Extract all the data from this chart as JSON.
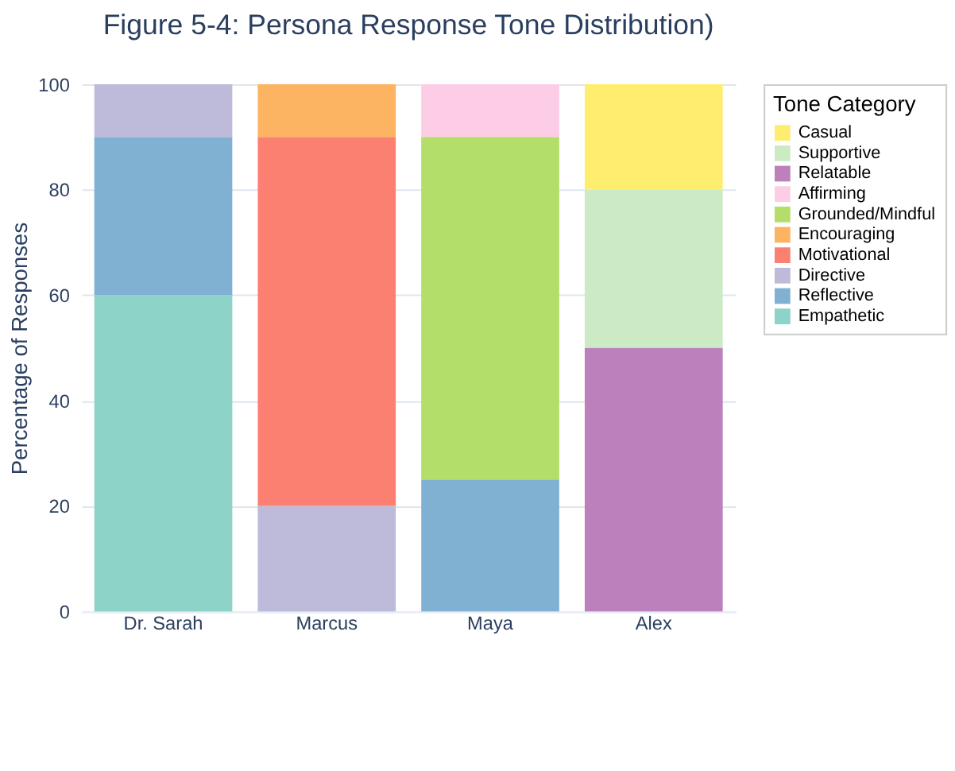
{
  "chart_data": {
    "type": "bar",
    "title": "Figure 5-4: Persona Response Tone Distribution)",
    "ylabel": "Percentage of Responses",
    "legend_title": "Tone Category",
    "categories": [
      "Dr. Sarah",
      "Marcus",
      "Maya",
      "Alex"
    ],
    "stacked": true,
    "ylim": [
      0,
      100
    ],
    "yticks": [
      0,
      20,
      40,
      60,
      80,
      100
    ],
    "grid": "y",
    "legend": "right",
    "series": [
      {
        "name": "Empathetic",
        "color": "#8dd3c7",
        "values": [
          60,
          null,
          null,
          null
        ]
      },
      {
        "name": "Reflective",
        "color": "#80b1d3",
        "values": [
          30,
          null,
          25,
          null
        ]
      },
      {
        "name": "Directive",
        "color": "#bebada",
        "values": [
          10,
          20,
          null,
          null
        ]
      },
      {
        "name": "Motivational",
        "color": "#fb8072",
        "values": [
          null,
          70,
          null,
          null
        ]
      },
      {
        "name": "Encouraging",
        "color": "#fdb462",
        "values": [
          null,
          10,
          null,
          null
        ]
      },
      {
        "name": "Grounded/Mindful",
        "color": "#b3de69",
        "values": [
          null,
          null,
          65,
          null
        ]
      },
      {
        "name": "Affirming",
        "color": "#fccde5",
        "values": [
          null,
          null,
          10,
          null
        ]
      },
      {
        "name": "Relatable",
        "color": "#bc80bd",
        "values": [
          null,
          null,
          null,
          50
        ]
      },
      {
        "name": "Supportive",
        "color": "#ccebc5",
        "values": [
          null,
          null,
          null,
          30
        ]
      },
      {
        "name": "Casual",
        "color": "#ffed6f",
        "values": [
          null,
          null,
          null,
          20
        ]
      }
    ]
  }
}
